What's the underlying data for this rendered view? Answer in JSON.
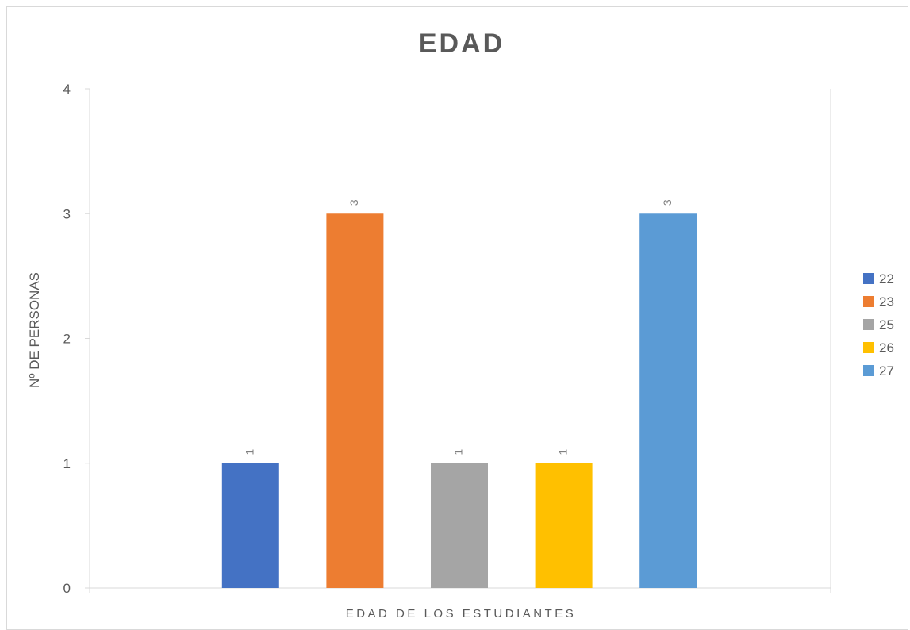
{
  "chart_data": {
    "type": "bar",
    "title": "EDAD",
    "xlabel": "EDAD DE LOS ESTUDIANTES",
    "ylabel": "Nº DE PERSONAS",
    "ylim": [
      0,
      4
    ],
    "yticks": [
      "0",
      "1",
      "2",
      "3",
      "4"
    ],
    "grid": false,
    "legend_position": "right",
    "series": [
      {
        "name": "22",
        "values": [
          1
        ],
        "color": "#4472C4"
      },
      {
        "name": "23",
        "values": [
          3
        ],
        "color": "#ED7D31"
      },
      {
        "name": "25",
        "values": [
          1
        ],
        "color": "#A5A5A5"
      },
      {
        "name": "26",
        "values": [
          1
        ],
        "color": "#FFC000"
      },
      {
        "name": "27",
        "values": [
          3
        ],
        "color": "#5B9BD5"
      }
    ],
    "data_labels": [
      "1",
      "3",
      "1",
      "1",
      "3"
    ]
  }
}
